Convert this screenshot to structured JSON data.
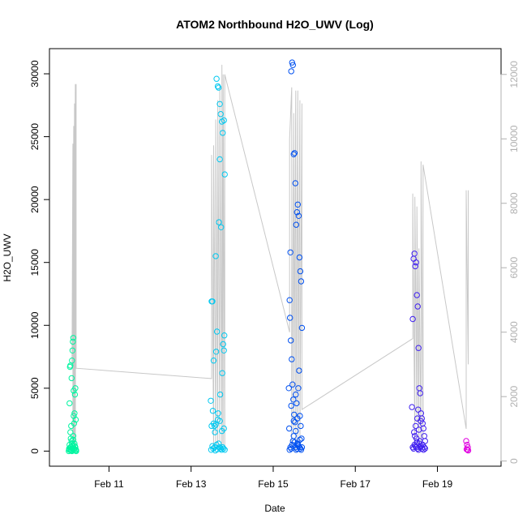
{
  "chart_data": {
    "type": "scatter",
    "title": "ATOM2 Northbound H2O_UWV (Log)",
    "xlabel": "Date",
    "ylabel": "H2O_UWV",
    "x_unit": "days (February)",
    "xlim": [
      9.55,
      20.55
    ],
    "ylim": [
      -1200,
      32000
    ],
    "y2lim": [
      -160,
      12800
    ],
    "x_ticks": [
      {
        "value": 11,
        "label": "Feb 11"
      },
      {
        "value": 13,
        "label": "Feb 13"
      },
      {
        "value": 15,
        "label": "Feb 15"
      },
      {
        "value": 17,
        "label": "Feb 17"
      },
      {
        "value": 19,
        "label": "Feb 19"
      }
    ],
    "y_ticks": [
      0,
      5000,
      10000,
      15000,
      20000,
      25000,
      30000
    ],
    "y2_ticks": [
      0,
      2000,
      4000,
      6000,
      8000,
      10000,
      12000
    ],
    "colors": {
      "axis": "#000000",
      "right_axis": "#b0b0b0",
      "secondary_line": "#c8c8c8"
    },
    "secondary_line": {
      "x": [
        10.1,
        10.12,
        10.12,
        10.14,
        10.14,
        10.16,
        10.16,
        10.18,
        10.18,
        10.2,
        10.2,
        13.5,
        13.5,
        13.55,
        13.55,
        13.6,
        13.6,
        13.65,
        13.65,
        13.7,
        13.7,
        13.75,
        13.75,
        13.78,
        13.78,
        13.82,
        13.82,
        15.4,
        15.4,
        15.45,
        15.45,
        15.5,
        15.5,
        15.55,
        15.55,
        15.6,
        15.6,
        15.65,
        15.65,
        15.7,
        15.7,
        18.4,
        18.4,
        18.45,
        18.45,
        18.5,
        18.5,
        18.55,
        18.55,
        18.6,
        18.6,
        18.65,
        18.65,
        19.7,
        19.7,
        19.75,
        19.75
      ],
      "y": [
        2880,
        9850,
        240,
        10400,
        600,
        11100,
        300,
        11700,
        500,
        11700,
        2880,
        2560,
        9500,
        300,
        9800,
        500,
        10600,
        400,
        11200,
        600,
        11700,
        400,
        12300,
        500,
        12000,
        400,
        12000,
        4000,
        10000,
        11600,
        400,
        10800,
        1000,
        11500,
        300,
        11500,
        600,
        11200,
        400,
        11100,
        1600,
        3800,
        8300,
        400,
        8200,
        1200,
        7900,
        300,
        6600,
        400,
        9300,
        700,
        9200,
        1000,
        8400,
        3000,
        8400
      ]
    },
    "series": [
      {
        "color": "#00f5a0",
        "x": [
          10.02,
          10.03,
          10.04,
          10.05,
          10.05,
          10.06,
          10.07,
          10.08,
          10.08,
          10.09,
          10.1,
          10.1,
          10.11,
          10.12,
          10.12,
          10.13,
          10.14,
          10.15,
          10.15,
          10.16,
          10.17,
          10.18,
          10.18,
          10.19,
          10.2,
          10.04,
          10.06,
          10.09,
          10.11,
          10.13,
          10.16,
          10.18,
          10.07,
          10.12,
          10.14,
          10.17,
          10.03,
          10.08,
          10.15,
          10.2,
          10.1,
          10.06,
          10.13,
          10.19
        ],
        "y": [
          0,
          200,
          3800,
          6700,
          100,
          6800,
          1000,
          2000,
          300,
          5800,
          7200,
          0,
          8000,
          8700,
          200,
          9000,
          4800,
          2200,
          100,
          3000,
          4500,
          5000,
          300,
          2500,
          0,
          500,
          1500,
          800,
          400,
          1200,
          600,
          100,
          50,
          150,
          2800,
          400,
          100,
          50,
          200,
          80,
          600,
          300,
          900,
          100
        ]
      },
      {
        "color": "#00c8f0",
        "x": [
          13.48,
          13.5,
          13.52,
          13.55,
          13.57,
          13.6,
          13.62,
          13.65,
          13.67,
          13.7,
          13.72,
          13.75,
          13.77,
          13.8,
          13.82,
          13.5,
          13.55,
          13.6,
          13.65,
          13.7,
          13.75,
          13.8,
          13.52,
          13.57,
          13.62,
          13.67,
          13.72,
          13.77,
          13.82,
          13.49,
          13.54,
          13.59,
          13.64,
          13.69,
          13.74,
          13.79,
          13.63,
          13.68,
          13.73,
          13.78,
          13.81,
          13.66,
          13.71,
          13.76,
          13.53,
          13.58,
          13.61,
          13.7,
          13.8
        ],
        "y": [
          4000,
          11900,
          11900,
          7200,
          2000,
          15500,
          29600,
          29000,
          28900,
          27600,
          26800,
          26200,
          25300,
          26300,
          22000,
          2000,
          2200,
          2100,
          2500,
          2400,
          1600,
          1800,
          400,
          300,
          500,
          600,
          200,
          300,
          100,
          100,
          200,
          50,
          150,
          300,
          100,
          200,
          9500,
          18200,
          17800,
          8500,
          9200,
          3000,
          4500,
          6200,
          3200,
          1500,
          7900,
          23200,
          8000
        ]
      },
      {
        "color": "#0050f0",
        "x": [
          15.38,
          15.4,
          15.42,
          15.44,
          15.46,
          15.48,
          15.5,
          15.52,
          15.54,
          15.56,
          15.58,
          15.6,
          15.62,
          15.64,
          15.66,
          15.68,
          15.7,
          15.4,
          15.42,
          15.44,
          15.46,
          15.48,
          15.5,
          15.52,
          15.54,
          15.56,
          15.58,
          15.6,
          15.62,
          15.64,
          15.66,
          15.68,
          15.41,
          15.43,
          15.45,
          15.47,
          15.49,
          15.51,
          15.53,
          15.55,
          15.57,
          15.59,
          15.61,
          15.63,
          15.65,
          15.67,
          15.69,
          15.39,
          15.44,
          15.5,
          15.55,
          15.6,
          15.65,
          15.7
        ],
        "y": [
          5000,
          12000,
          15800,
          30200,
          30900,
          30700,
          23600,
          23700,
          21300,
          18000,
          19000,
          19600,
          18700,
          15400,
          14300,
          13500,
          9800,
          100,
          300,
          200,
          500,
          800,
          1200,
          700,
          300,
          100,
          200,
          600,
          400,
          300,
          200,
          100,
          10600,
          8800,
          7300,
          5300,
          4100,
          2900,
          2300,
          4500,
          3800,
          2600,
          5000,
          6400,
          2800,
          2000,
          1000,
          1800,
          3600,
          2400,
          1600,
          500,
          900,
          300
        ]
      },
      {
        "color": "#4020f0",
        "x": [
          18.38,
          18.4,
          18.42,
          18.44,
          18.46,
          18.48,
          18.5,
          18.52,
          18.54,
          18.56,
          18.58,
          18.6,
          18.62,
          18.64,
          18.66,
          18.68,
          18.7,
          18.4,
          18.42,
          18.44,
          18.46,
          18.48,
          18.5,
          18.52,
          18.54,
          18.56,
          18.58,
          18.6,
          18.62,
          18.64,
          18.66,
          18.68,
          18.7,
          18.43,
          18.45,
          18.47,
          18.49,
          18.51,
          18.53,
          18.55,
          18.57,
          18.59
        ],
        "y": [
          3500,
          10500,
          15300,
          15700,
          14700,
          15000,
          12400,
          11500,
          8200,
          5000,
          4600,
          3000,
          2600,
          2200,
          1800,
          1200,
          800,
          300,
          200,
          500,
          400,
          300,
          700,
          200,
          100,
          600,
          300,
          400,
          200,
          500,
          100,
          300,
          200,
          1500,
          1200,
          2000,
          1000,
          2600,
          3300,
          1700,
          800,
          2400
        ]
      },
      {
        "color": "#e000e0",
        "x": [
          19.7,
          19.72,
          19.74,
          19.71,
          19.73,
          19.75
        ],
        "y": [
          800,
          500,
          300,
          150,
          100,
          50
        ]
      }
    ]
  }
}
